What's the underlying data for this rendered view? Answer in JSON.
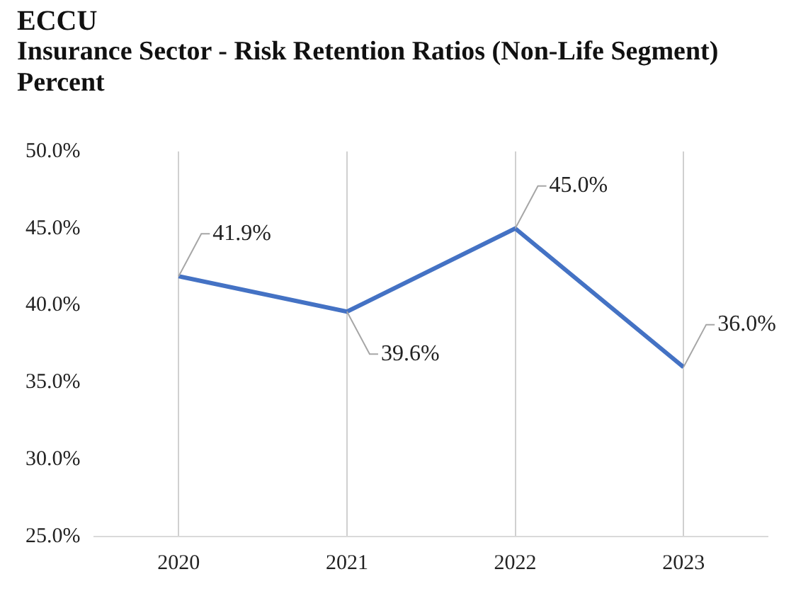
{
  "chart_data": {
    "type": "line",
    "title": "ECCU",
    "subtitle": "Insurance Sector - Risk Retention Ratios (Non-Life Segment)",
    "ylabel": "Percent",
    "categories": [
      "2020",
      "2021",
      "2022",
      "2023"
    ],
    "series": [
      {
        "color": "#4472c4",
        "values": [
          41.9,
          39.6,
          45.0,
          36.0
        ],
        "value_labels": [
          "41.9%",
          "39.6%",
          "45.0%",
          "36.0%"
        ]
      }
    ],
    "ylim": [
      25,
      50
    ],
    "yticks": [
      {
        "value": 25,
        "label": "25.0%"
      },
      {
        "value": 30,
        "label": "30.0%"
      },
      {
        "value": 35,
        "label": "35.0%"
      },
      {
        "value": 40,
        "label": "40.0%"
      },
      {
        "value": 45,
        "label": "45.0%"
      },
      {
        "value": 50,
        "label": "50.0%"
      }
    ],
    "grid": "x",
    "legend": false,
    "marker": "none",
    "line_style": "solid"
  }
}
